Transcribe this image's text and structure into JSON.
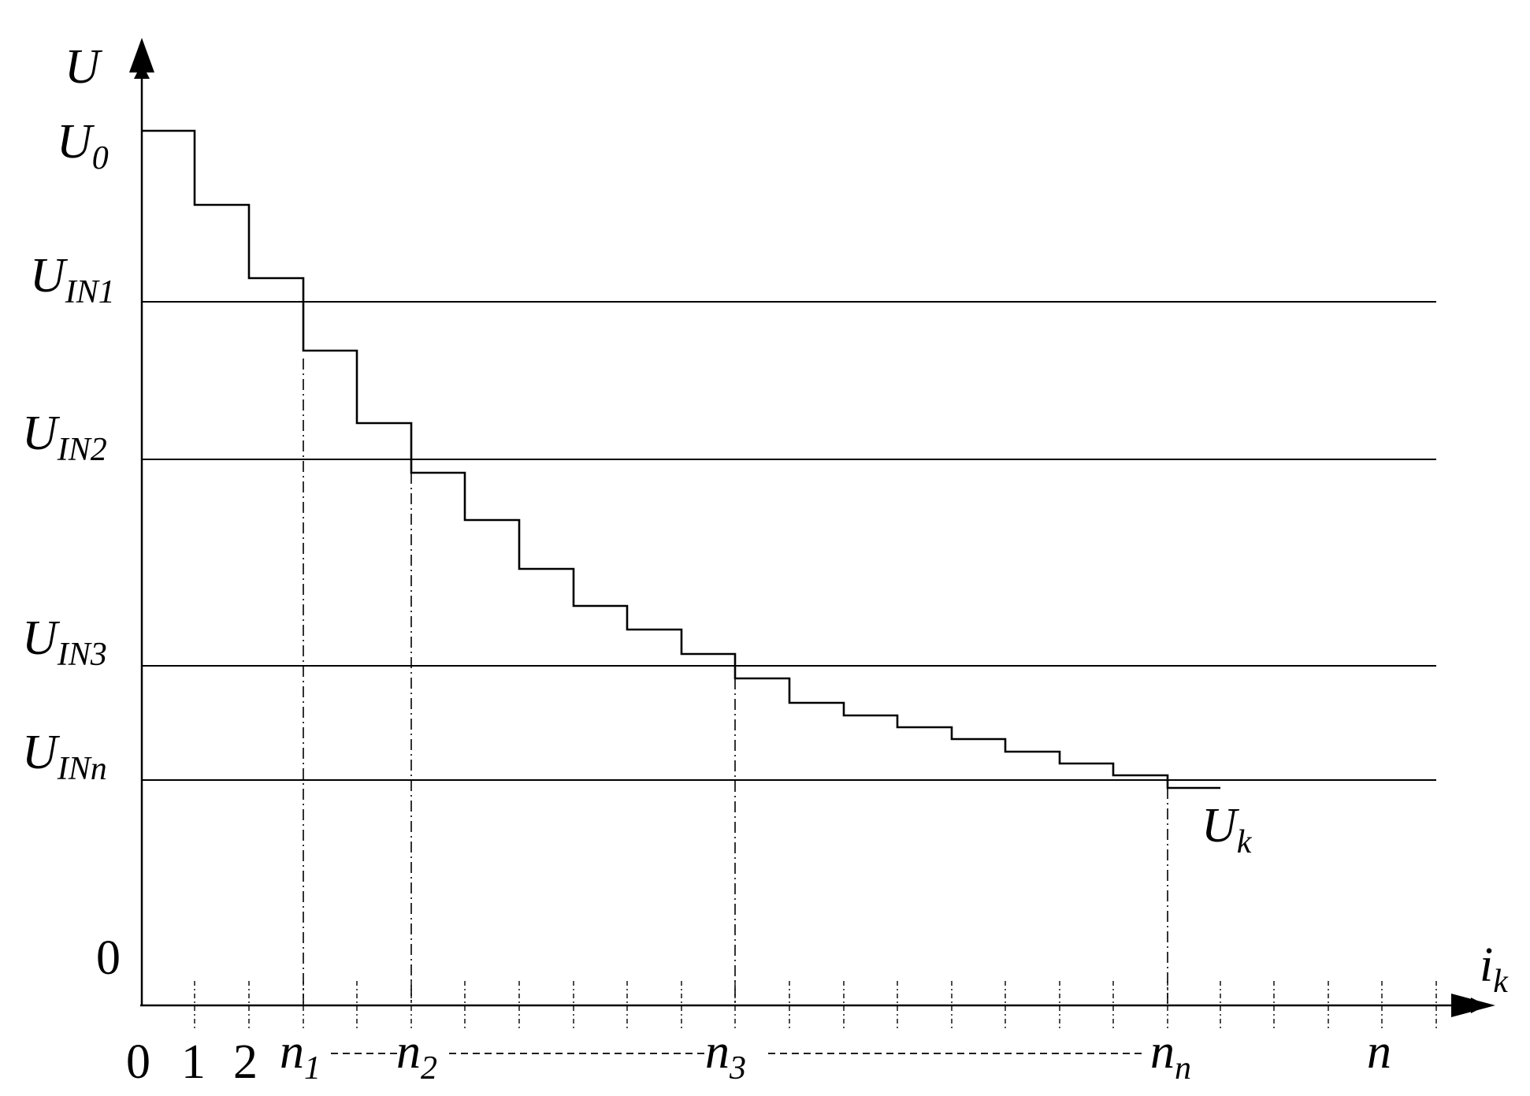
{
  "axes": {
    "y_label": "U",
    "x_label_base": "i",
    "x_label_sub": "k",
    "origin_y": "0",
    "origin_x": "0"
  },
  "y_labels": [
    {
      "base": "U",
      "sub": "0"
    },
    {
      "base": "U",
      "sub": "IN1"
    },
    {
      "base": "U",
      "sub": "IN2"
    },
    {
      "base": "U",
      "sub": "IN3"
    },
    {
      "base": "U",
      "sub": "INn"
    }
  ],
  "x_labels": {
    "one": "1",
    "two": "2",
    "n1": {
      "base": "n",
      "sub": "1"
    },
    "n2": {
      "base": "n",
      "sub": "2"
    },
    "n3": {
      "base": "n",
      "sub": "3"
    },
    "nn": {
      "base": "n",
      "sub": "n"
    },
    "n": "n"
  },
  "curve_label": {
    "base": "U",
    "sub": "k"
  }
}
